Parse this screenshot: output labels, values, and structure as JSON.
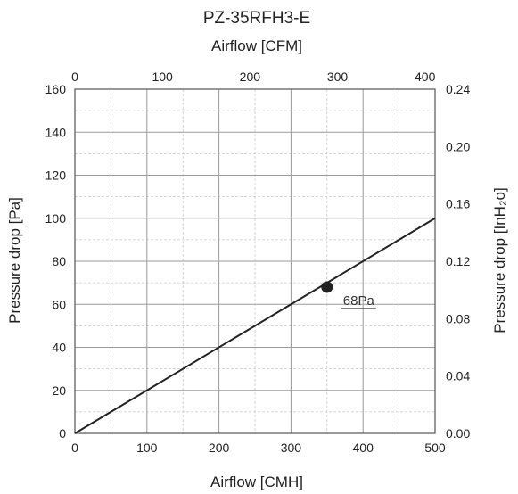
{
  "chart_data": {
    "type": "line",
    "title": "PZ-35RFH3-E",
    "xlabel": "Airflow [CMH]",
    "xlabel_top": "Airflow [CFM]",
    "ylabel": "Pressure drop [Pa]",
    "ylabel_right": "Pressure drop [InH₂o]",
    "xlim": [
      0,
      500
    ],
    "ylim": [
      0,
      160
    ],
    "xlim_top": [
      0,
      411.5
    ],
    "ylim_right": [
      0,
      0.24
    ],
    "x_ticks": [
      "0",
      "100",
      "200",
      "300",
      "400",
      "500"
    ],
    "y_ticks": [
      "0",
      "20",
      "40",
      "60",
      "80",
      "100",
      "120",
      "140",
      "160"
    ],
    "x_top_ticks": [
      "0",
      "100",
      "200",
      "300",
      "400"
    ],
    "y_right_ticks": [
      "0.00",
      "0.04",
      "0.08",
      "0.12",
      "0.16",
      "0.20",
      "0.24"
    ],
    "grid": true,
    "series": [
      {
        "x": [
          0,
          500
        ],
        "y": [
          0,
          100
        ]
      }
    ],
    "marker": {
      "x": 350,
      "y": 68
    },
    "annotations": [
      {
        "text": "68Pa",
        "x": 350,
        "y": 68
      }
    ]
  }
}
